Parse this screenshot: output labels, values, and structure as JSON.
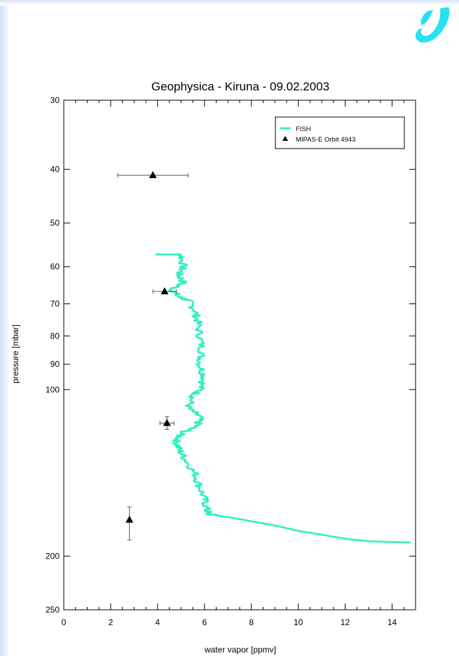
{
  "chart_data": {
    "type": "line",
    "title": "Geophysica - Kiruna - 09.02.2003",
    "xlabel": "water vapor [ppmv]",
    "ylabel": "pressure [mbar]",
    "xlim": [
      0,
      15
    ],
    "ylim": [
      30,
      250
    ],
    "y_scale": "log",
    "y_inverted": true,
    "x_ticks": [
      0,
      2,
      4,
      6,
      8,
      10,
      12,
      14
    ],
    "y_ticks": [
      30,
      40,
      50,
      60,
      70,
      80,
      90,
      100,
      200,
      250
    ],
    "legend_position": "top-right",
    "series": [
      {
        "name": "FISH",
        "type": "line",
        "color": "#2ef0c0",
        "points": [
          [
            3.9,
            57
          ],
          [
            5.0,
            57
          ],
          [
            5.1,
            60
          ],
          [
            4.9,
            62
          ],
          [
            5.1,
            64
          ],
          [
            4.6,
            66
          ],
          [
            4.9,
            68
          ],
          [
            5.3,
            69
          ],
          [
            5.6,
            72
          ],
          [
            5.7,
            75
          ],
          [
            5.8,
            80
          ],
          [
            5.9,
            85
          ],
          [
            5.8,
            90
          ],
          [
            6.0,
            95
          ],
          [
            5.8,
            100
          ],
          [
            5.5,
            103
          ],
          [
            5.3,
            108
          ],
          [
            5.8,
            112
          ],
          [
            5.7,
            116
          ],
          [
            5.0,
            120
          ],
          [
            4.8,
            124
          ],
          [
            4.9,
            128
          ],
          [
            5.2,
            134
          ],
          [
            5.6,
            142
          ],
          [
            5.8,
            150
          ],
          [
            6.0,
            158
          ],
          [
            6.1,
            165
          ],
          [
            6.2,
            168
          ],
          [
            7.0,
            170
          ],
          [
            8.0,
            173
          ],
          [
            9.0,
            176
          ],
          [
            10.0,
            180
          ],
          [
            11.0,
            183
          ],
          [
            12.0,
            186
          ],
          [
            13.0,
            188
          ],
          [
            14.8,
            189
          ]
        ]
      },
      {
        "name": "MIPAS-E Orbit 4943",
        "type": "scatter",
        "marker": "triangle",
        "color": "#000000",
        "points": [
          {
            "x": 3.8,
            "y": 41,
            "xerr": [
              2.3,
              5.3
            ]
          },
          {
            "x": 4.3,
            "y": 66.5,
            "xerr": [
              3.8,
              4.8
            ]
          },
          {
            "x": 4.4,
            "y": 115,
            "xerr": [
              4.1,
              4.7
            ],
            "yerr": [
              112,
              118
            ]
          },
          {
            "x": 2.8,
            "y": 172,
            "yerr": [
              163,
              187
            ]
          }
        ]
      }
    ]
  }
}
